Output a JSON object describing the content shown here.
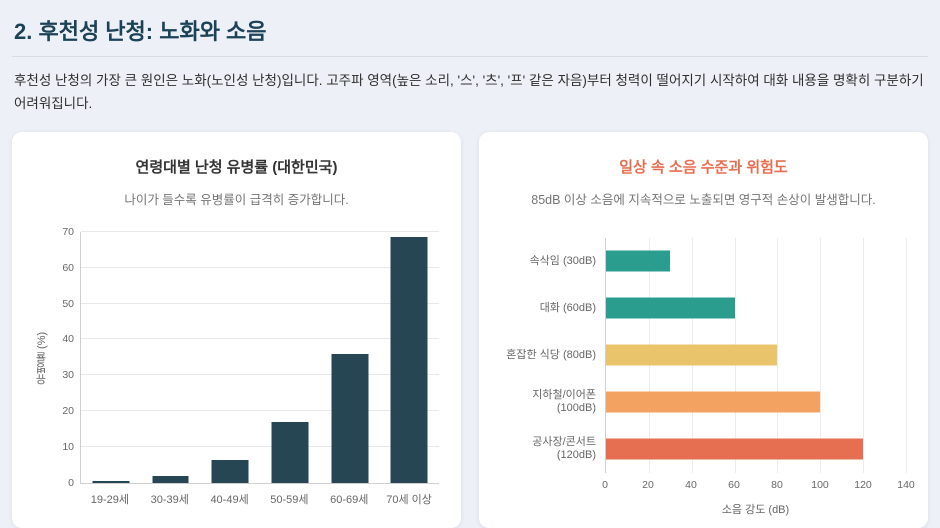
{
  "page": {
    "heading": "2. 후천성 난청: 노화와 소음",
    "intro": "후천성 난청의 가장 큰 원인은 노화(노인성 난청)입니다. 고주파 영역(높은 소리, '스', '츠', '프' 같은 자음)부터 청력이 떨어지기 시작하여 대화 내용을 명확히 구분하기 어려워집니다."
  },
  "colors": {
    "page_background": "#edf1f7",
    "heading_text": "#1c4257",
    "card_background": "#ffffff",
    "prevalence_bar": "#264653",
    "noise_title_accent": "#e76f51"
  },
  "chart_data": [
    {
      "type": "bar",
      "title": "연령대별 난청 유병률 (대한민국)",
      "subtitle": "나이가 들수록 유병률이 급격히 증가합니다.",
      "categories": [
        "19-29세",
        "30-39세",
        "40-49세",
        "50-59세",
        "60-69세",
        "70세 이상"
      ],
      "values": [
        0.5,
        2,
        6.3,
        17,
        36,
        68.5
      ],
      "xlabel": "",
      "ylabel": "유병률 (%)",
      "ylim": [
        0,
        70
      ],
      "ytick_step": 10,
      "bar_color": "#264653",
      "grid": true,
      "legend": "none"
    },
    {
      "type": "horizontal-bar",
      "title": "일상 속 소음 수준과 위험도",
      "subtitle": "85dB 이상 소음에 지속적으로 노출되면 영구적 손상이 발생합니다.",
      "categories": [
        "속삭임 (30dB)",
        "대화 (60dB)",
        "혼잡한 식당 (80dB)",
        "지하철/이어폰 (100dB)",
        "공사장/콘서트 (120dB)"
      ],
      "values": [
        30,
        60,
        80,
        100,
        120
      ],
      "bar_colors": [
        "#2a9d8f",
        "#2a9d8f",
        "#e9c46a",
        "#f4a261",
        "#e76f51"
      ],
      "xlabel": "소음 강도 (dB)",
      "ylabel": "",
      "xlim": [
        0,
        140
      ],
      "xtick_step": 20,
      "title_color": "#e76f51",
      "grid": true,
      "legend": "none"
    }
  ]
}
